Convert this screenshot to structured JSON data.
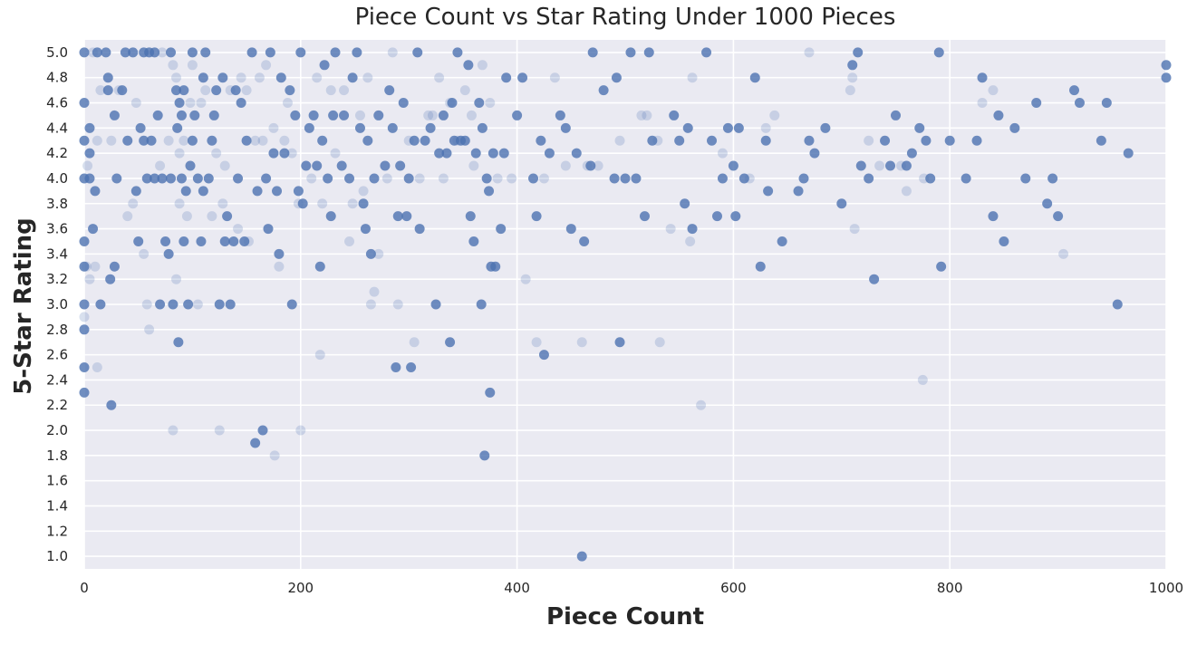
{
  "chart_data": {
    "type": "scatter",
    "title": "Piece Count vs Star Rating Under 1000 Pieces",
    "xlabel": "Piece Count",
    "ylabel": "5-Star Rating",
    "xlim": [
      0,
      1000
    ],
    "ylim": [
      0.9,
      5.1
    ],
    "xticks": [
      0,
      200,
      400,
      600,
      800,
      1000
    ],
    "yticks": [
      1.0,
      1.2,
      1.4,
      1.6,
      1.8,
      2.0,
      2.2,
      2.4,
      2.6,
      2.8,
      3.0,
      3.2,
      3.4,
      3.6,
      3.8,
      4.0,
      4.2,
      4.4,
      4.6,
      4.8,
      5.0
    ],
    "grid": true,
    "background": "#eaeaf2",
    "point_color": "#4c72b0",
    "points": [
      [
        0,
        5.0
      ],
      [
        0,
        4.6
      ],
      [
        0,
        4.3
      ],
      [
        0,
        4.0
      ],
      [
        0,
        3.5
      ],
      [
        0,
        3.3
      ],
      [
        0,
        3.0
      ],
      [
        0,
        2.8
      ],
      [
        0,
        2.5
      ],
      [
        0,
        2.3
      ],
      [
        5,
        4.4
      ],
      [
        5,
        4.2
      ],
      [
        5,
        4.0
      ],
      [
        8,
        3.6
      ],
      [
        10,
        3.9
      ],
      [
        12,
        5.0
      ],
      [
        15,
        3.0
      ],
      [
        20,
        5.0
      ],
      [
        22,
        4.8
      ],
      [
        22,
        4.7
      ],
      [
        24,
        3.2
      ],
      [
        25,
        2.2
      ],
      [
        28,
        3.3
      ],
      [
        28,
        4.5
      ],
      [
        30,
        4.0
      ],
      [
        35,
        4.7
      ],
      [
        38,
        5.0
      ],
      [
        40,
        4.3
      ],
      [
        45,
        5.0
      ],
      [
        48,
        3.9
      ],
      [
        50,
        3.5
      ],
      [
        52,
        4.4
      ],
      [
        55,
        5.0
      ],
      [
        55,
        4.3
      ],
      [
        58,
        4.0
      ],
      [
        60,
        5.0
      ],
      [
        62,
        4.3
      ],
      [
        65,
        4.0
      ],
      [
        65,
        5.0
      ],
      [
        68,
        4.5
      ],
      [
        70,
        3.0
      ],
      [
        72,
        4.0
      ],
      [
        75,
        3.5
      ],
      [
        78,
        3.4
      ],
      [
        80,
        4.0
      ],
      [
        80,
        5.0
      ],
      [
        82,
        3.0
      ],
      [
        85,
        4.7
      ],
      [
        86,
        4.4
      ],
      [
        87,
        2.7
      ],
      [
        88,
        4.6
      ],
      [
        90,
        4.0
      ],
      [
        90,
        4.5
      ],
      [
        92,
        3.5
      ],
      [
        92,
        4.7
      ],
      [
        94,
        3.9
      ],
      [
        96,
        3.0
      ],
      [
        98,
        4.1
      ],
      [
        100,
        4.3
      ],
      [
        100,
        5.0
      ],
      [
        102,
        4.5
      ],
      [
        105,
        4.0
      ],
      [
        108,
        3.5
      ],
      [
        110,
        3.9
      ],
      [
        110,
        4.8
      ],
      [
        112,
        5.0
      ],
      [
        115,
        4.0
      ],
      [
        118,
        4.3
      ],
      [
        120,
        4.5
      ],
      [
        122,
        4.7
      ],
      [
        125,
        3.0
      ],
      [
        128,
        4.8
      ],
      [
        130,
        3.5
      ],
      [
        132,
        3.7
      ],
      [
        135,
        3.0
      ],
      [
        138,
        3.5
      ],
      [
        140,
        4.7
      ],
      [
        142,
        4.0
      ],
      [
        145,
        4.6
      ],
      [
        148,
        3.5
      ],
      [
        150,
        4.3
      ],
      [
        155,
        5.0
      ],
      [
        158,
        1.9
      ],
      [
        160,
        3.9
      ],
      [
        165,
        2.0
      ],
      [
        168,
        4.0
      ],
      [
        170,
        3.6
      ],
      [
        172,
        5.0
      ],
      [
        175,
        4.2
      ],
      [
        178,
        3.9
      ],
      [
        180,
        3.4
      ],
      [
        182,
        4.8
      ],
      [
        185,
        4.2
      ],
      [
        190,
        4.7
      ],
      [
        192,
        3.0
      ],
      [
        195,
        4.5
      ],
      [
        198,
        3.9
      ],
      [
        200,
        5.0
      ],
      [
        202,
        3.8
      ],
      [
        205,
        4.1
      ],
      [
        208,
        4.4
      ],
      [
        212,
        4.5
      ],
      [
        215,
        4.1
      ],
      [
        218,
        3.3
      ],
      [
        220,
        4.3
      ],
      [
        222,
        4.9
      ],
      [
        225,
        4.0
      ],
      [
        228,
        3.7
      ],
      [
        230,
        4.5
      ],
      [
        232,
        5.0
      ],
      [
        238,
        4.1
      ],
      [
        240,
        4.5
      ],
      [
        245,
        4.0
      ],
      [
        248,
        4.8
      ],
      [
        252,
        5.0
      ],
      [
        255,
        4.4
      ],
      [
        258,
        3.8
      ],
      [
        260,
        3.6
      ],
      [
        262,
        4.3
      ],
      [
        265,
        3.4
      ],
      [
        268,
        4.0
      ],
      [
        272,
        4.5
      ],
      [
        278,
        4.1
      ],
      [
        282,
        4.7
      ],
      [
        285,
        4.4
      ],
      [
        288,
        2.5
      ],
      [
        290,
        3.7
      ],
      [
        292,
        4.1
      ],
      [
        295,
        4.6
      ],
      [
        298,
        3.7
      ],
      [
        300,
        4.0
      ],
      [
        302,
        2.5
      ],
      [
        305,
        4.3
      ],
      [
        308,
        5.0
      ],
      [
        310,
        3.6
      ],
      [
        315,
        4.3
      ],
      [
        320,
        4.4
      ],
      [
        325,
        3.0
      ],
      [
        328,
        4.2
      ],
      [
        332,
        4.5
      ],
      [
        335,
        4.2
      ],
      [
        338,
        2.7
      ],
      [
        340,
        4.6
      ],
      [
        342,
        4.3
      ],
      [
        345,
        5.0
      ],
      [
        348,
        4.3
      ],
      [
        352,
        4.3
      ],
      [
        355,
        4.9
      ],
      [
        357,
        3.7
      ],
      [
        360,
        3.5
      ],
      [
        362,
        4.2
      ],
      [
        365,
        4.6
      ],
      [
        367,
        3.0
      ],
      [
        368,
        4.4
      ],
      [
        370,
        1.8
      ],
      [
        372,
        4.0
      ],
      [
        374,
        3.9
      ],
      [
        375,
        2.3
      ],
      [
        376,
        3.3
      ],
      [
        378,
        4.2
      ],
      [
        380,
        3.3
      ],
      [
        385,
        3.6
      ],
      [
        388,
        4.2
      ],
      [
        390,
        4.8
      ],
      [
        400,
        4.5
      ],
      [
        405,
        4.8
      ],
      [
        415,
        4.0
      ],
      [
        418,
        3.7
      ],
      [
        422,
        4.3
      ],
      [
        425,
        2.6
      ],
      [
        430,
        4.2
      ],
      [
        440,
        4.5
      ],
      [
        445,
        4.4
      ],
      [
        450,
        3.6
      ],
      [
        455,
        4.2
      ],
      [
        460,
        1.0
      ],
      [
        462,
        3.5
      ],
      [
        468,
        4.1
      ],
      [
        470,
        5.0
      ],
      [
        480,
        4.7
      ],
      [
        490,
        4.0
      ],
      [
        492,
        4.8
      ],
      [
        495,
        2.7
      ],
      [
        500,
        4.0
      ],
      [
        505,
        5.0
      ],
      [
        510,
        4.0
      ],
      [
        518,
        3.7
      ],
      [
        522,
        5.0
      ],
      [
        525,
        4.3
      ],
      [
        545,
        4.5
      ],
      [
        550,
        4.3
      ],
      [
        555,
        3.8
      ],
      [
        558,
        4.4
      ],
      [
        562,
        3.6
      ],
      [
        575,
        5.0
      ],
      [
        580,
        4.3
      ],
      [
        585,
        3.7
      ],
      [
        590,
        4.0
      ],
      [
        595,
        4.4
      ],
      [
        600,
        4.1
      ],
      [
        602,
        3.7
      ],
      [
        605,
        4.4
      ],
      [
        610,
        4.0
      ],
      [
        620,
        4.8
      ],
      [
        625,
        3.3
      ],
      [
        630,
        4.3
      ],
      [
        632,
        3.9
      ],
      [
        645,
        3.5
      ],
      [
        660,
        3.9
      ],
      [
        665,
        4.0
      ],
      [
        670,
        4.3
      ],
      [
        675,
        4.2
      ],
      [
        685,
        4.4
      ],
      [
        700,
        3.8
      ],
      [
        710,
        4.9
      ],
      [
        715,
        5.0
      ],
      [
        718,
        4.1
      ],
      [
        725,
        4.0
      ],
      [
        730,
        3.2
      ],
      [
        740,
        4.3
      ],
      [
        745,
        4.1
      ],
      [
        750,
        4.5
      ],
      [
        760,
        4.1
      ],
      [
        765,
        4.2
      ],
      [
        772,
        4.4
      ],
      [
        778,
        4.3
      ],
      [
        782,
        4.0
      ],
      [
        790,
        5.0
      ],
      [
        792,
        3.3
      ],
      [
        800,
        4.3
      ],
      [
        815,
        4.0
      ],
      [
        825,
        4.3
      ],
      [
        830,
        4.8
      ],
      [
        840,
        3.7
      ],
      [
        845,
        4.5
      ],
      [
        850,
        3.5
      ],
      [
        860,
        4.4
      ],
      [
        870,
        4.0
      ],
      [
        880,
        4.6
      ],
      [
        890,
        3.8
      ],
      [
        895,
        4.0
      ],
      [
        900,
        3.7
      ],
      [
        915,
        4.7
      ],
      [
        920,
        4.6
      ],
      [
        940,
        4.3
      ],
      [
        945,
        4.6
      ],
      [
        955,
        3.0
      ],
      [
        965,
        4.2
      ],
      [
        1000,
        4.9
      ],
      [
        1000,
        4.8
      ]
    ],
    "points_faint": [
      [
        0,
        2.9
      ],
      [
        2,
        3.3
      ],
      [
        3,
        4.1
      ],
      [
        5,
        3.2
      ],
      [
        8,
        5.0
      ],
      [
        10,
        3.3
      ],
      [
        12,
        4.3
      ],
      [
        12,
        2.5
      ],
      [
        15,
        4.7
      ],
      [
        25,
        4.3
      ],
      [
        32,
        4.7
      ],
      [
        40,
        3.7
      ],
      [
        45,
        3.8
      ],
      [
        48,
        4.6
      ],
      [
        55,
        3.4
      ],
      [
        58,
        3.0
      ],
      [
        60,
        2.8
      ],
      [
        70,
        4.1
      ],
      [
        72,
        5.0
      ],
      [
        78,
        4.3
      ],
      [
        82,
        2.0
      ],
      [
        82,
        4.9
      ],
      [
        85,
        3.2
      ],
      [
        85,
        4.8
      ],
      [
        88,
        3.8
      ],
      [
        88,
        4.2
      ],
      [
        92,
        4.3
      ],
      [
        95,
        3.7
      ],
      [
        98,
        4.6
      ],
      [
        100,
        4.9
      ],
      [
        105,
        3.0
      ],
      [
        108,
        4.6
      ],
      [
        112,
        4.7
      ],
      [
        118,
        3.7
      ],
      [
        122,
        4.2
      ],
      [
        125,
        2.0
      ],
      [
        128,
        3.8
      ],
      [
        130,
        4.1
      ],
      [
        135,
        4.7
      ],
      [
        142,
        3.6
      ],
      [
        145,
        4.8
      ],
      [
        150,
        4.7
      ],
      [
        152,
        3.5
      ],
      [
        158,
        4.3
      ],
      [
        162,
        4.8
      ],
      [
        165,
        4.3
      ],
      [
        168,
        4.9
      ],
      [
        175,
        4.4
      ],
      [
        176,
        1.8
      ],
      [
        180,
        3.3
      ],
      [
        185,
        4.3
      ],
      [
        188,
        4.6
      ],
      [
        192,
        4.2
      ],
      [
        198,
        3.8
      ],
      [
        200,
        2.0
      ],
      [
        210,
        4.0
      ],
      [
        215,
        4.8
      ],
      [
        218,
        2.6
      ],
      [
        220,
        3.8
      ],
      [
        228,
        4.7
      ],
      [
        232,
        4.2
      ],
      [
        240,
        4.7
      ],
      [
        245,
        3.5
      ],
      [
        248,
        3.8
      ],
      [
        255,
        4.5
      ],
      [
        258,
        3.9
      ],
      [
        262,
        4.8
      ],
      [
        265,
        3.0
      ],
      [
        268,
        3.1
      ],
      [
        272,
        3.4
      ],
      [
        280,
        4.0
      ],
      [
        285,
        5.0
      ],
      [
        290,
        3.0
      ],
      [
        300,
        4.3
      ],
      [
        305,
        2.7
      ],
      [
        310,
        4.0
      ],
      [
        318,
        4.5
      ],
      [
        322,
        4.5
      ],
      [
        328,
        4.8
      ],
      [
        332,
        4.0
      ],
      [
        338,
        4.6
      ],
      [
        345,
        4.3
      ],
      [
        352,
        4.7
      ],
      [
        358,
        4.5
      ],
      [
        360,
        4.1
      ],
      [
        368,
        4.9
      ],
      [
        375,
        4.6
      ],
      [
        382,
        4.0
      ],
      [
        395,
        4.0
      ],
      [
        408,
        3.2
      ],
      [
        418,
        2.7
      ],
      [
        425,
        4.0
      ],
      [
        435,
        4.8
      ],
      [
        445,
        4.1
      ],
      [
        460,
        2.7
      ],
      [
        465,
        4.1
      ],
      [
        475,
        4.1
      ],
      [
        495,
        4.3
      ],
      [
        515,
        4.5
      ],
      [
        520,
        4.5
      ],
      [
        530,
        4.3
      ],
      [
        532,
        2.7
      ],
      [
        542,
        3.6
      ],
      [
        560,
        3.5
      ],
      [
        562,
        4.8
      ],
      [
        570,
        2.2
      ],
      [
        590,
        4.2
      ],
      [
        615,
        4.0
      ],
      [
        630,
        4.4
      ],
      [
        638,
        4.5
      ],
      [
        670,
        5.0
      ],
      [
        708,
        4.7
      ],
      [
        710,
        4.8
      ],
      [
        712,
        3.6
      ],
      [
        725,
        4.3
      ],
      [
        735,
        4.1
      ],
      [
        755,
        4.1
      ],
      [
        760,
        3.9
      ],
      [
        775,
        2.4
      ],
      [
        776,
        4.0
      ],
      [
        830,
        4.6
      ],
      [
        840,
        4.7
      ],
      [
        905,
        3.4
      ]
    ]
  }
}
